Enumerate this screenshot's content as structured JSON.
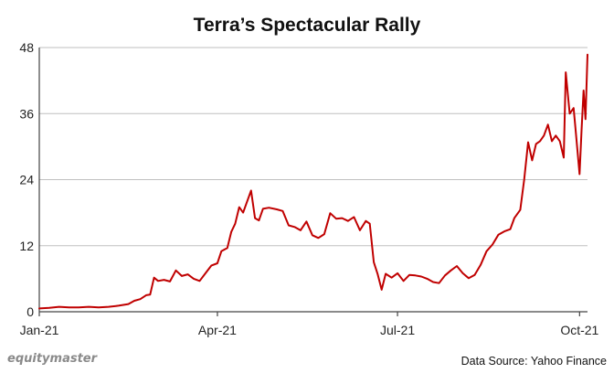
{
  "chart_data": {
    "type": "line",
    "title": "Terra’s Spectacular Rally",
    "xlabel": "",
    "ylabel": "",
    "ylim": [
      0,
      48
    ],
    "xlim": [
      "2021-01-01",
      "2021-10-05"
    ],
    "yticks": [
      0,
      12,
      24,
      36,
      48
    ],
    "xticks": [
      {
        "date": "2021-01-01",
        "label": "Jan-21"
      },
      {
        "date": "2021-04-01",
        "label": "Apr-21"
      },
      {
        "date": "2021-07-01",
        "label": "Jul-21"
      },
      {
        "date": "2021-10-01",
        "label": "Oct-21"
      }
    ],
    "grid": "horizontal",
    "legend": "none",
    "series": [
      {
        "color": "#c00000",
        "points": [
          [
            "2021-01-01",
            0.6
          ],
          [
            "2021-01-06",
            0.7
          ],
          [
            "2021-01-11",
            0.9
          ],
          [
            "2021-01-16",
            0.8
          ],
          [
            "2021-01-21",
            0.8
          ],
          [
            "2021-01-26",
            0.9
          ],
          [
            "2021-01-31",
            0.8
          ],
          [
            "2021-02-05",
            0.9
          ],
          [
            "2021-02-10",
            1.1
          ],
          [
            "2021-02-15",
            1.4
          ],
          [
            "2021-02-18",
            2.0
          ],
          [
            "2021-02-21",
            2.3
          ],
          [
            "2021-02-24",
            3.0
          ],
          [
            "2021-02-26",
            3.1
          ],
          [
            "2021-02-28",
            6.2
          ],
          [
            "2021-03-02",
            5.6
          ],
          [
            "2021-03-05",
            5.8
          ],
          [
            "2021-03-08",
            5.5
          ],
          [
            "2021-03-11",
            7.5
          ],
          [
            "2021-03-14",
            6.5
          ],
          [
            "2021-03-17",
            6.8
          ],
          [
            "2021-03-20",
            6.0
          ],
          [
            "2021-03-23",
            5.6
          ],
          [
            "2021-03-26",
            7.0
          ],
          [
            "2021-03-29",
            8.4
          ],
          [
            "2021-04-01",
            8.8
          ],
          [
            "2021-04-03",
            11.0
          ],
          [
            "2021-04-06",
            11.6
          ],
          [
            "2021-04-08",
            14.5
          ],
          [
            "2021-04-10",
            16.0
          ],
          [
            "2021-04-12",
            19.0
          ],
          [
            "2021-04-14",
            18.0
          ],
          [
            "2021-04-16",
            20.0
          ],
          [
            "2021-04-18",
            22.0
          ],
          [
            "2021-04-20",
            17.0
          ],
          [
            "2021-04-22",
            16.6
          ],
          [
            "2021-04-24",
            18.7
          ],
          [
            "2021-04-27",
            18.9
          ],
          [
            "2021-05-01",
            18.6
          ],
          [
            "2021-05-04",
            18.3
          ],
          [
            "2021-05-07",
            15.7
          ],
          [
            "2021-05-10",
            15.4
          ],
          [
            "2021-05-13",
            14.8
          ],
          [
            "2021-05-16",
            16.4
          ],
          [
            "2021-05-19",
            13.9
          ],
          [
            "2021-05-22",
            13.4
          ],
          [
            "2021-05-25",
            14.1
          ],
          [
            "2021-05-28",
            17.9
          ],
          [
            "2021-05-31",
            16.9
          ],
          [
            "2021-06-03",
            17.0
          ],
          [
            "2021-06-06",
            16.5
          ],
          [
            "2021-06-09",
            17.2
          ],
          [
            "2021-06-12",
            14.8
          ],
          [
            "2021-06-15",
            16.5
          ],
          [
            "2021-06-17",
            16.0
          ],
          [
            "2021-06-19",
            9.0
          ],
          [
            "2021-06-21",
            6.8
          ],
          [
            "2021-06-23",
            4.0
          ],
          [
            "2021-06-25",
            6.9
          ],
          [
            "2021-06-28",
            6.2
          ],
          [
            "2021-07-01",
            7.0
          ],
          [
            "2021-07-04",
            5.6
          ],
          [
            "2021-07-07",
            6.7
          ],
          [
            "2021-07-10",
            6.6
          ],
          [
            "2021-07-13",
            6.4
          ],
          [
            "2021-07-16",
            6.0
          ],
          [
            "2021-07-19",
            5.4
          ],
          [
            "2021-07-22",
            5.2
          ],
          [
            "2021-07-25",
            6.6
          ],
          [
            "2021-07-28",
            7.5
          ],
          [
            "2021-07-31",
            8.3
          ],
          [
            "2021-08-03",
            7.0
          ],
          [
            "2021-08-06",
            6.1
          ],
          [
            "2021-08-09",
            6.7
          ],
          [
            "2021-08-12",
            8.5
          ],
          [
            "2021-08-15",
            11.0
          ],
          [
            "2021-08-18",
            12.2
          ],
          [
            "2021-08-21",
            14.0
          ],
          [
            "2021-08-24",
            14.6
          ],
          [
            "2021-08-27",
            15.0
          ],
          [
            "2021-08-29",
            17.0
          ],
          [
            "2021-09-01",
            18.5
          ],
          [
            "2021-09-03",
            24.0
          ],
          [
            "2021-09-05",
            30.8
          ],
          [
            "2021-09-07",
            27.5
          ],
          [
            "2021-09-09",
            30.5
          ],
          [
            "2021-09-11",
            31.0
          ],
          [
            "2021-09-13",
            32.0
          ],
          [
            "2021-09-15",
            34.0
          ],
          [
            "2021-09-17",
            31.0
          ],
          [
            "2021-09-19",
            32.0
          ],
          [
            "2021-09-21",
            31.0
          ],
          [
            "2021-09-23",
            28.0
          ],
          [
            "2021-09-24",
            43.5
          ],
          [
            "2021-09-26",
            36.0
          ],
          [
            "2021-09-28",
            37.0
          ],
          [
            "2021-09-29",
            33.0
          ],
          [
            "2021-10-01",
            25.0
          ],
          [
            "2021-10-02",
            33.0
          ],
          [
            "2021-10-03",
            40.2
          ],
          [
            "2021-10-04",
            35.0
          ],
          [
            "2021-10-05",
            46.7
          ]
        ]
      }
    ]
  },
  "footer": {
    "brand": "equitymaster",
    "source": "Data Source: Yahoo Finance"
  }
}
